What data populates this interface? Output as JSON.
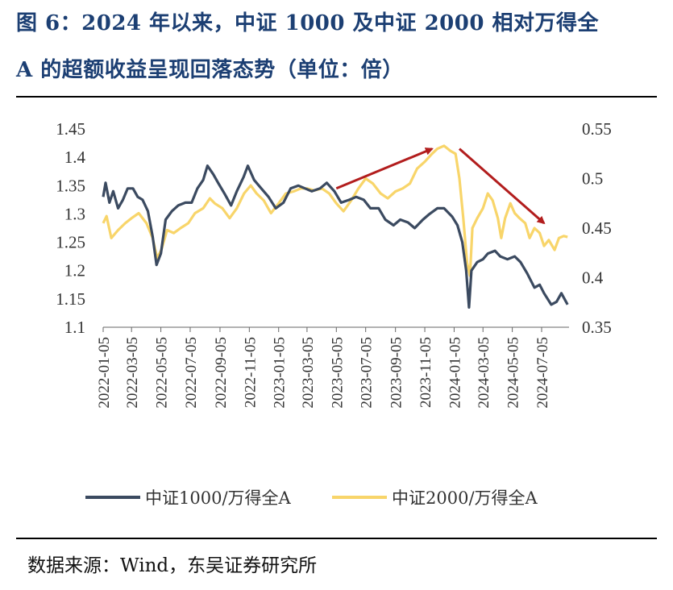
{
  "header": {
    "title_line1": "图 6：2024 年以来，中证 1000 及中证 2000 相对万得全",
    "title_line2": "A 的超额收益呈现回落态势（单位：倍）"
  },
  "footer": {
    "source": "数据来源：Wind，东吴证券研究所"
  },
  "colors": {
    "series1": "#3b4a60",
    "series2": "#f8d56a",
    "arrow": "#b21d1d",
    "title": "#1c3f73"
  },
  "chart_data": {
    "type": "line",
    "title": "图 6：2024 年以来，中证 1000 及中证 2000 相对万得全A 的超额收益呈现回落态势（单位：倍）",
    "x_range": [
      "2022-01-05",
      "2024-08-31"
    ],
    "x_tick_labels": [
      "2022-01-05",
      "2022-03-05",
      "2022-05-05",
      "2022-07-05",
      "2022-09-05",
      "2022-11-05",
      "2023-01-05",
      "2023-03-05",
      "2023-05-05",
      "2023-07-05",
      "2023-09-05",
      "2023-11-05",
      "2024-01-05",
      "2024-03-05",
      "2024-05-05",
      "2024-07-05"
    ],
    "y_left": {
      "min": 1.1,
      "max": 1.45,
      "ticks": [
        "1.1",
        "1.15",
        "1.2",
        "1.25",
        "1.3",
        "1.35",
        "1.4",
        "1.45"
      ]
    },
    "y_right": {
      "min": 0.35,
      "max": 0.55,
      "ticks": [
        "0.35",
        "0.4",
        "0.45",
        "0.5",
        "0.55"
      ]
    },
    "legend_position": "bottom",
    "grid": false,
    "series": [
      {
        "name": "中证1000/万得全A",
        "axis": "left",
        "points": [
          [
            "2022-01-05",
            1.33
          ],
          [
            "2022-01-10",
            1.355
          ],
          [
            "2022-01-18",
            1.32
          ],
          [
            "2022-01-26",
            1.34
          ],
          [
            "2022-02-05",
            1.31
          ],
          [
            "2022-02-15",
            1.325
          ],
          [
            "2022-02-25",
            1.345
          ],
          [
            "2022-03-08",
            1.345
          ],
          [
            "2022-03-18",
            1.33
          ],
          [
            "2022-03-28",
            1.325
          ],
          [
            "2022-04-08",
            1.305
          ],
          [
            "2022-04-18",
            1.26
          ],
          [
            "2022-04-26",
            1.21
          ],
          [
            "2022-05-05",
            1.23
          ],
          [
            "2022-05-15",
            1.29
          ],
          [
            "2022-05-28",
            1.305
          ],
          [
            "2022-06-10",
            1.315
          ],
          [
            "2022-06-25",
            1.32
          ],
          [
            "2022-07-08",
            1.32
          ],
          [
            "2022-07-20",
            1.345
          ],
          [
            "2022-08-01",
            1.36
          ],
          [
            "2022-08-10",
            1.385
          ],
          [
            "2022-08-22",
            1.37
          ],
          [
            "2022-09-01",
            1.355
          ],
          [
            "2022-09-15",
            1.335
          ],
          [
            "2022-09-28",
            1.315
          ],
          [
            "2022-10-10",
            1.34
          ],
          [
            "2022-10-24",
            1.365
          ],
          [
            "2022-11-02",
            1.385
          ],
          [
            "2022-11-15",
            1.36
          ],
          [
            "2022-11-30",
            1.345
          ],
          [
            "2022-12-15",
            1.33
          ],
          [
            "2022-12-30",
            1.31
          ],
          [
            "2023-01-15",
            1.32
          ],
          [
            "2023-01-30",
            1.345
          ],
          [
            "2023-02-15",
            1.35
          ],
          [
            "2023-03-01",
            1.345
          ],
          [
            "2023-03-15",
            1.34
          ],
          [
            "2023-04-01",
            1.345
          ],
          [
            "2023-04-15",
            1.355
          ],
          [
            "2023-05-01",
            1.34
          ],
          [
            "2023-05-15",
            1.32
          ],
          [
            "2023-06-01",
            1.325
          ],
          [
            "2023-06-15",
            1.33
          ],
          [
            "2023-07-01",
            1.325
          ],
          [
            "2023-07-15",
            1.31
          ],
          [
            "2023-08-01",
            1.31
          ],
          [
            "2023-08-15",
            1.29
          ],
          [
            "2023-09-01",
            1.28
          ],
          [
            "2023-09-15",
            1.29
          ],
          [
            "2023-10-01",
            1.285
          ],
          [
            "2023-10-15",
            1.275
          ],
          [
            "2023-11-01",
            1.29
          ],
          [
            "2023-11-15",
            1.3
          ],
          [
            "2023-12-01",
            1.31
          ],
          [
            "2023-12-15",
            1.31
          ],
          [
            "2024-01-01",
            1.295
          ],
          [
            "2024-01-12",
            1.28
          ],
          [
            "2024-01-22",
            1.25
          ],
          [
            "2024-01-30",
            1.2
          ],
          [
            "2024-02-05",
            1.135
          ],
          [
            "2024-02-10",
            1.2
          ],
          [
            "2024-02-22",
            1.215
          ],
          [
            "2024-03-05",
            1.22
          ],
          [
            "2024-03-15",
            1.23
          ],
          [
            "2024-03-30",
            1.235
          ],
          [
            "2024-04-10",
            1.225
          ],
          [
            "2024-04-25",
            1.22
          ],
          [
            "2024-05-10",
            1.225
          ],
          [
            "2024-05-22",
            1.215
          ],
          [
            "2024-06-05",
            1.195
          ],
          [
            "2024-06-20",
            1.17
          ],
          [
            "2024-07-01",
            1.175
          ],
          [
            "2024-07-10",
            1.16
          ],
          [
            "2024-07-25",
            1.14
          ],
          [
            "2024-08-05",
            1.145
          ],
          [
            "2024-08-15",
            1.16
          ],
          [
            "2024-08-28",
            1.14
          ]
        ]
      },
      {
        "name": "中证2000/万得全A",
        "axis": "right",
        "points": [
          [
            "2022-01-05",
            0.455
          ],
          [
            "2022-01-12",
            0.462
          ],
          [
            "2022-01-22",
            0.44
          ],
          [
            "2022-02-05",
            0.448
          ],
          [
            "2022-02-20",
            0.455
          ],
          [
            "2022-03-05",
            0.46
          ],
          [
            "2022-03-20",
            0.465
          ],
          [
            "2022-04-05",
            0.455
          ],
          [
            "2022-04-18",
            0.44
          ],
          [
            "2022-04-27",
            0.42
          ],
          [
            "2022-05-06",
            0.428
          ],
          [
            "2022-05-18",
            0.448
          ],
          [
            "2022-06-01",
            0.445
          ],
          [
            "2022-06-15",
            0.45
          ],
          [
            "2022-07-01",
            0.455
          ],
          [
            "2022-07-15",
            0.465
          ],
          [
            "2022-08-01",
            0.47
          ],
          [
            "2022-08-15",
            0.48
          ],
          [
            "2022-08-25",
            0.475
          ],
          [
            "2022-09-10",
            0.47
          ],
          [
            "2022-09-25",
            0.46
          ],
          [
            "2022-10-10",
            0.47
          ],
          [
            "2022-10-25",
            0.485
          ],
          [
            "2022-11-08",
            0.493
          ],
          [
            "2022-11-20",
            0.485
          ],
          [
            "2022-12-05",
            0.478
          ],
          [
            "2022-12-20",
            0.465
          ],
          [
            "2023-01-05",
            0.475
          ],
          [
            "2023-01-20",
            0.485
          ],
          [
            "2023-02-05",
            0.487
          ],
          [
            "2023-02-20",
            0.49
          ],
          [
            "2023-03-05",
            0.49
          ],
          [
            "2023-03-20",
            0.488
          ],
          [
            "2023-04-05",
            0.49
          ],
          [
            "2023-04-20",
            0.485
          ],
          [
            "2023-05-05",
            0.475
          ],
          [
            "2023-05-20",
            0.467
          ],
          [
            "2023-06-05",
            0.478
          ],
          [
            "2023-06-20",
            0.49
          ],
          [
            "2023-07-05",
            0.5
          ],
          [
            "2023-07-20",
            0.495
          ],
          [
            "2023-08-05",
            0.485
          ],
          [
            "2023-08-20",
            0.48
          ],
          [
            "2023-09-05",
            0.487
          ],
          [
            "2023-09-20",
            0.49
          ],
          [
            "2023-10-05",
            0.495
          ],
          [
            "2023-10-20",
            0.51
          ],
          [
            "2023-11-05",
            0.517
          ],
          [
            "2023-11-20",
            0.525
          ],
          [
            "2023-12-01",
            0.53
          ],
          [
            "2023-12-15",
            0.533
          ],
          [
            "2023-12-28",
            0.528
          ],
          [
            "2024-01-08",
            0.525
          ],
          [
            "2024-01-16",
            0.5
          ],
          [
            "2024-01-24",
            0.46
          ],
          [
            "2024-02-01",
            0.415
          ],
          [
            "2024-02-07",
            0.402
          ],
          [
            "2024-02-12",
            0.45
          ],
          [
            "2024-02-22",
            0.46
          ],
          [
            "2024-03-05",
            0.47
          ],
          [
            "2024-03-15",
            0.485
          ],
          [
            "2024-03-25",
            0.478
          ],
          [
            "2024-04-05",
            0.46
          ],
          [
            "2024-04-12",
            0.44
          ],
          [
            "2024-04-20",
            0.46
          ],
          [
            "2024-05-01",
            0.475
          ],
          [
            "2024-05-10",
            0.465
          ],
          [
            "2024-05-20",
            0.46
          ],
          [
            "2024-06-01",
            0.455
          ],
          [
            "2024-06-10",
            0.44
          ],
          [
            "2024-06-20",
            0.45
          ],
          [
            "2024-07-01",
            0.445
          ],
          [
            "2024-07-10",
            0.432
          ],
          [
            "2024-07-20",
            0.438
          ],
          [
            "2024-08-01",
            0.428
          ],
          [
            "2024-08-10",
            0.44
          ],
          [
            "2024-08-20",
            0.442
          ],
          [
            "2024-08-28",
            0.441
          ]
        ]
      }
    ],
    "annotations": [
      {
        "type": "arrow",
        "from": [
          "2023-05-05",
          0.49
        ],
        "to": [
          "2023-11-20",
          0.53
        ],
        "axis": "right"
      },
      {
        "type": "arrow",
        "from": [
          "2024-01-16",
          0.53
        ],
        "to": [
          "2024-07-10",
          0.455
        ],
        "axis": "right"
      }
    ]
  }
}
